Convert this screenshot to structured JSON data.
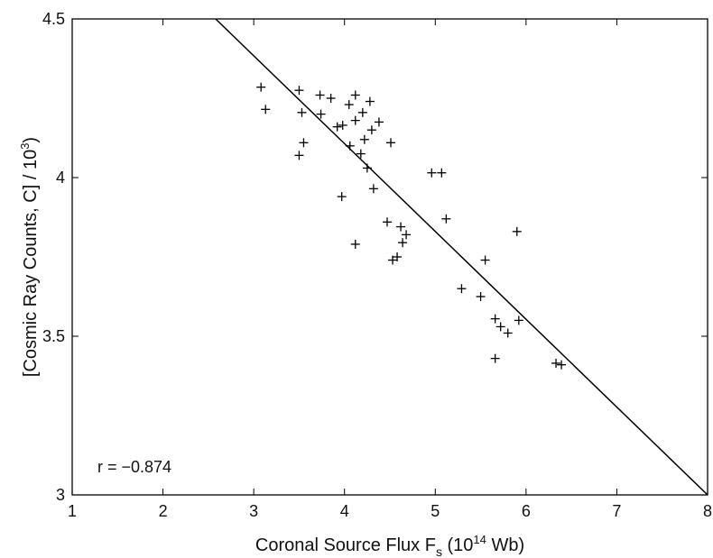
{
  "chart_data": {
    "type": "scatter",
    "title": "",
    "xlabel": {
      "text": "Coronal Source Flux F",
      "subscript": "s",
      "unit_prefix": " (10",
      "unit_exp": "14",
      "unit_suffix": " Wb)"
    },
    "ylabel": {
      "text": "[Cosmic Ray Counts, C] / 10",
      "exp": "3",
      "close": ")"
    },
    "xlim": [
      1,
      8
    ],
    "ylim": [
      3,
      4.5
    ],
    "xticks": [
      "1",
      "2",
      "3",
      "4",
      "5",
      "6",
      "7",
      "8"
    ],
    "yticks": [
      "3",
      "3.5",
      "4",
      "4.5"
    ],
    "grid": false,
    "marker": "+",
    "annotation": "r = −0.874",
    "fit_line": {
      "x": [
        2.58,
        8.0
      ],
      "y": [
        4.5,
        3.0
      ]
    },
    "points": [
      [
        3.08,
        4.285
      ],
      [
        3.13,
        4.215
      ],
      [
        3.5,
        4.275
      ],
      [
        3.53,
        4.205
      ],
      [
        3.55,
        4.11
      ],
      [
        3.5,
        4.07
      ],
      [
        3.73,
        4.26
      ],
      [
        3.85,
        4.25
      ],
      [
        3.74,
        4.2
      ],
      [
        3.92,
        4.16
      ],
      [
        3.98,
        4.165
      ],
      [
        4.05,
        4.23
      ],
      [
        4.12,
        4.26
      ],
      [
        4.12,
        4.18
      ],
      [
        4.2,
        4.205
      ],
      [
        4.28,
        4.24
      ],
      [
        4.3,
        4.15
      ],
      [
        4.38,
        4.175
      ],
      [
        4.22,
        4.12
      ],
      [
        4.06,
        4.1
      ],
      [
        4.18,
        4.075
      ],
      [
        4.25,
        4.03
      ],
      [
        4.51,
        4.11
      ],
      [
        4.32,
        3.965
      ],
      [
        3.97,
        3.94
      ],
      [
        4.47,
        3.86
      ],
      [
        4.62,
        3.845
      ],
      [
        4.68,
        3.82
      ],
      [
        4.64,
        3.795
      ],
      [
        4.12,
        3.79
      ],
      [
        4.58,
        3.75
      ],
      [
        4.53,
        3.74
      ],
      [
        4.96,
        4.015
      ],
      [
        5.07,
        4.015
      ],
      [
        5.12,
        3.87
      ],
      [
        5.55,
        3.74
      ],
      [
        5.9,
        3.83
      ],
      [
        5.29,
        3.65
      ],
      [
        5.5,
        3.625
      ],
      [
        5.66,
        3.555
      ],
      [
        5.72,
        3.53
      ],
      [
        5.8,
        3.51
      ],
      [
        5.92,
        3.55
      ],
      [
        5.66,
        3.43
      ],
      [
        6.33,
        3.415
      ],
      [
        6.39,
        3.41
      ]
    ]
  }
}
